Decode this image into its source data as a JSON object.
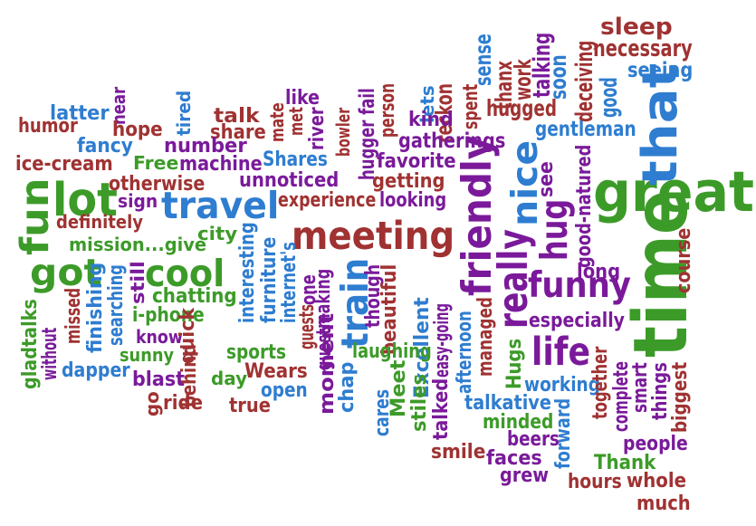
{
  "colors": {
    "brown": "#a03232",
    "green": "#3c9b28",
    "blue": "#2e7dd0",
    "purple": "#7a1a9a"
  },
  "words": [
    {
      "text": "great",
      "color": "green"
    },
    {
      "text": "time",
      "color": "green"
    },
    {
      "text": "that",
      "color": "blue"
    },
    {
      "text": "meeting",
      "color": "brown"
    },
    {
      "text": "travel",
      "color": "blue"
    },
    {
      "text": "friendly",
      "color": "purple"
    },
    {
      "text": "really",
      "color": "purple"
    },
    {
      "text": "nice",
      "color": "blue"
    },
    {
      "text": "funny",
      "color": "purple"
    },
    {
      "text": "lot",
      "color": "green"
    },
    {
      "text": "cool",
      "color": "green"
    },
    {
      "text": "got",
      "color": "green"
    },
    {
      "text": "fun",
      "color": "green"
    },
    {
      "text": "hug",
      "color": "purple"
    },
    {
      "text": "train",
      "color": "blue"
    },
    {
      "text": "life",
      "color": "purple"
    },
    {
      "text": "sleep",
      "color": "brown"
    },
    {
      "text": "necessary",
      "color": "brown"
    },
    {
      "text": "seeing",
      "color": "blue"
    },
    {
      "text": "gentleman",
      "color": "blue"
    },
    {
      "text": "good",
      "color": "blue"
    },
    {
      "text": "deceiving",
      "color": "brown"
    },
    {
      "text": "soon",
      "color": "blue"
    },
    {
      "text": "talking",
      "color": "purple"
    },
    {
      "text": "work",
      "color": "brown"
    },
    {
      "text": "thanx",
      "color": "brown"
    },
    {
      "text": "sense",
      "color": "blue"
    },
    {
      "text": "spent",
      "color": "brown"
    },
    {
      "text": "hugged",
      "color": "brown"
    },
    {
      "text": "reckon",
      "color": "brown"
    },
    {
      "text": "lets",
      "color": "blue"
    },
    {
      "text": "kind",
      "color": "purple"
    },
    {
      "text": "gatherings",
      "color": "purple"
    },
    {
      "text": "person",
      "color": "brown"
    },
    {
      "text": "hugger fail",
      "color": "purple"
    },
    {
      "text": "like",
      "color": "purple"
    },
    {
      "text": "met",
      "color": "brown"
    },
    {
      "text": "river",
      "color": "purple"
    },
    {
      "text": "bowler",
      "color": "brown"
    },
    {
      "text": "favorite",
      "color": "purple"
    },
    {
      "text": "mate",
      "color": "brown"
    },
    {
      "text": "Shares",
      "color": "blue"
    },
    {
      "text": "unnoticed",
      "color": "purple"
    },
    {
      "text": "getting",
      "color": "brown"
    },
    {
      "text": "experience",
      "color": "brown"
    },
    {
      "text": "looking",
      "color": "purple"
    },
    {
      "text": "talk",
      "color": "brown"
    },
    {
      "text": "share",
      "color": "brown"
    },
    {
      "text": "tired",
      "color": "blue"
    },
    {
      "text": "number",
      "color": "purple"
    },
    {
      "text": "Free",
      "color": "green"
    },
    {
      "text": "machine",
      "color": "purple"
    },
    {
      "text": "latter",
      "color": "blue"
    },
    {
      "text": "near",
      "color": "purple"
    },
    {
      "text": "humor",
      "color": "brown"
    },
    {
      "text": "hope",
      "color": "brown"
    },
    {
      "text": "fancy",
      "color": "blue"
    },
    {
      "text": "ice-cream",
      "color": "brown"
    },
    {
      "text": "otherwise",
      "color": "brown"
    },
    {
      "text": "sign",
      "color": "purple"
    },
    {
      "text": "definitely",
      "color": "brown"
    },
    {
      "text": "mission...give",
      "color": "green"
    },
    {
      "text": "city",
      "color": "green"
    },
    {
      "text": "still",
      "color": "purple"
    },
    {
      "text": "searching",
      "color": "blue"
    },
    {
      "text": "finishing",
      "color": "blue"
    },
    {
      "text": "missed",
      "color": "brown"
    },
    {
      "text": "chatting",
      "color": "green"
    },
    {
      "text": "i-phone",
      "color": "green"
    },
    {
      "text": "know",
      "color": "purple"
    },
    {
      "text": "sunny",
      "color": "green"
    },
    {
      "text": "quick",
      "color": "brown"
    },
    {
      "text": "interesting",
      "color": "blue"
    },
    {
      "text": "furniture",
      "color": "blue"
    },
    {
      "text": "internet's",
      "color": "blue"
    },
    {
      "text": "guests",
      "color": "brown"
    },
    {
      "text": "one",
      "color": "purple"
    },
    {
      "text": "making",
      "color": "purple"
    },
    {
      "text": "guest",
      "color": "purple"
    },
    {
      "text": "moment",
      "color": "purple"
    },
    {
      "text": "though",
      "color": "purple"
    },
    {
      "text": "beautiful",
      "color": "brown"
    },
    {
      "text": "Excellent",
      "color": "blue"
    },
    {
      "text": "easy-going",
      "color": "purple"
    },
    {
      "text": "managed",
      "color": "brown"
    },
    {
      "text": "afternoon",
      "color": "blue"
    },
    {
      "text": "see",
      "color": "purple"
    },
    {
      "text": "especially",
      "color": "purple"
    },
    {
      "text": "good-natured",
      "color": "purple"
    },
    {
      "text": "long",
      "color": "purple"
    },
    {
      "text": "course",
      "color": "brown"
    },
    {
      "text": "gladtalks",
      "color": "green"
    },
    {
      "text": "without",
      "color": "purple"
    },
    {
      "text": "dapper",
      "color": "blue"
    },
    {
      "text": "behind",
      "color": "brown"
    },
    {
      "text": "blast",
      "color": "purple"
    },
    {
      "text": "go",
      "color": "brown"
    },
    {
      "text": "ride",
      "color": "brown"
    },
    {
      "text": "day",
      "color": "green"
    },
    {
      "text": "sports",
      "color": "green"
    },
    {
      "text": "Wears",
      "color": "brown"
    },
    {
      "text": "open",
      "color": "blue"
    },
    {
      "text": "true",
      "color": "brown"
    },
    {
      "text": "chap",
      "color": "blue"
    },
    {
      "text": "laughing",
      "color": "green"
    },
    {
      "text": "Meet",
      "color": "green"
    },
    {
      "text": "cares",
      "color": "blue"
    },
    {
      "text": "stiles",
      "color": "green"
    },
    {
      "text": "talked",
      "color": "purple"
    },
    {
      "text": "Hugs",
      "color": "green"
    },
    {
      "text": "working",
      "color": "blue"
    },
    {
      "text": "talkative",
      "color": "blue"
    },
    {
      "text": "minded",
      "color": "green"
    },
    {
      "text": "beers",
      "color": "purple"
    },
    {
      "text": "faces",
      "color": "purple"
    },
    {
      "text": "smile",
      "color": "brown"
    },
    {
      "text": "grew",
      "color": "purple"
    },
    {
      "text": "forward",
      "color": "blue"
    },
    {
      "text": "together",
      "color": "brown"
    },
    {
      "text": "complete",
      "color": "purple"
    },
    {
      "text": "smart",
      "color": "purple"
    },
    {
      "text": "things",
      "color": "purple"
    },
    {
      "text": "biggest",
      "color": "brown"
    },
    {
      "text": "Thank",
      "color": "green"
    },
    {
      "text": "people",
      "color": "purple"
    },
    {
      "text": "hours",
      "color": "brown"
    },
    {
      "text": "whole",
      "color": "brown"
    },
    {
      "text": "much",
      "color": "brown"
    }
  ]
}
